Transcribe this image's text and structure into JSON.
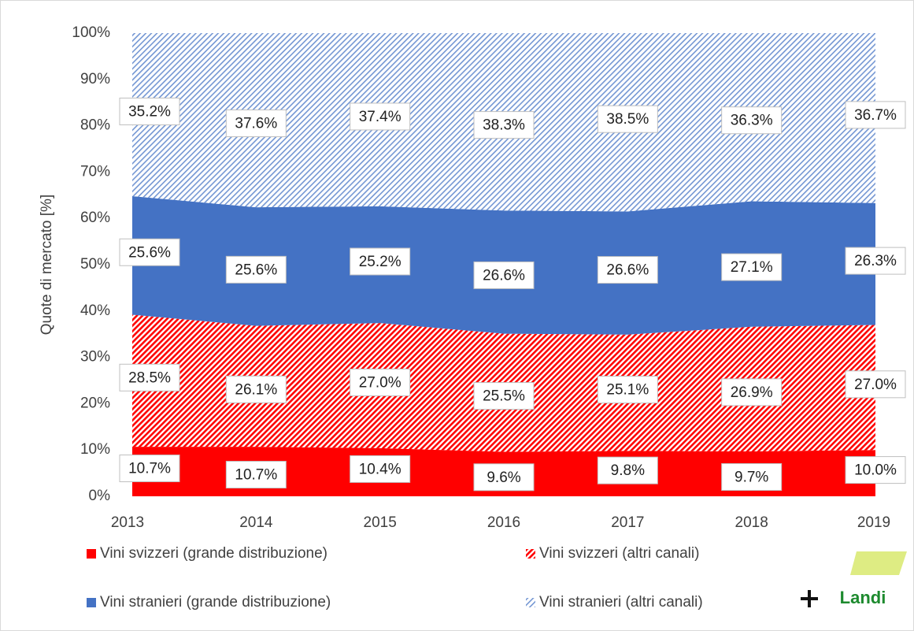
{
  "chart_data": {
    "type": "stacked_area",
    "y_label": "Quote di mercato [%]",
    "categories": [
      "2013",
      "2014",
      "2015",
      "2016",
      "2017",
      "2018",
      "2019"
    ],
    "ylim": [
      0,
      100
    ],
    "yticks": [
      {
        "value": 0,
        "label": "0%"
      },
      {
        "value": 10,
        "label": "10%"
      },
      {
        "value": 20,
        "label": "20%"
      },
      {
        "value": 30,
        "label": "30%"
      },
      {
        "value": 40,
        "label": "40%"
      },
      {
        "value": 50,
        "label": "50%"
      },
      {
        "value": 60,
        "label": "60%"
      },
      {
        "value": 70,
        "label": "70%"
      },
      {
        "value": 80,
        "label": "80%"
      },
      {
        "value": 90,
        "label": "90%"
      },
      {
        "value": 100,
        "label": "100%"
      }
    ],
    "series": [
      {
        "name": "Vini svizzeri (grande distribuzione)",
        "color": "#ff0000",
        "fill": "solid",
        "values": [
          10.7,
          10.7,
          10.4,
          9.6,
          9.8,
          9.7,
          10.0
        ],
        "value_labels": [
          "10.7%",
          "10.7%",
          "10.4%",
          "9.6%",
          "9.8%",
          "9.7%",
          "10.0%"
        ]
      },
      {
        "name": "Vini svizzeri (altri canali)",
        "color": "#ff0000",
        "fill": "hatch",
        "values": [
          28.5,
          26.1,
          27.0,
          25.5,
          25.1,
          26.9,
          27.0
        ],
        "value_labels": [
          "28.5%",
          "26.1%",
          "27.0%",
          "25.5%",
          "25.1%",
          "26.9%",
          "27.0%"
        ]
      },
      {
        "name": "Vini stranieri (grande distribuzione)",
        "color": "#4472c4",
        "fill": "solid",
        "values": [
          25.6,
          25.6,
          25.2,
          26.6,
          26.6,
          27.1,
          26.3
        ],
        "value_labels": [
          "25.6%",
          "25.6%",
          "25.2%",
          "26.6%",
          "26.6%",
          "27.1%",
          "26.3%"
        ]
      },
      {
        "name": "Vini stranieri (altri canali)",
        "color": "#4472c4",
        "fill": "hatch",
        "values": [
          35.2,
          37.6,
          37.4,
          38.3,
          38.5,
          36.3,
          36.7
        ],
        "value_labels": [
          "35.2%",
          "37.6%",
          "37.4%",
          "38.3%",
          "38.5%",
          "36.3%",
          "36.7%"
        ]
      }
    ],
    "logo": "Landi"
  }
}
